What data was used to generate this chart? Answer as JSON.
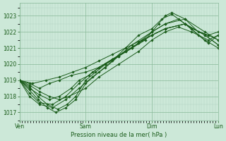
{
  "background_color": "#cce8d8",
  "plot_bg_color": "#cce8d8",
  "grid_color_minor": "#aad0c0",
  "grid_color_major": "#88b898",
  "line_color": "#1a5c1a",
  "marker_color": "#1a5c1a",
  "title": "Pression niveau de la mer( hPa )",
  "xlabel_ticks": [
    "Ven",
    "Sam",
    "Dim",
    "Lun"
  ],
  "ylim": [
    1016.5,
    1023.8
  ],
  "yticks": [
    1017,
    1018,
    1019,
    1020,
    1021,
    1022,
    1023
  ],
  "figsize": [
    3.2,
    2.0
  ],
  "dpi": 100,
  "members": [
    {
      "x": [
        0,
        0.15,
        0.28,
        0.42,
        0.58,
        0.72,
        0.85,
        1.0,
        1.15,
        1.3,
        1.5,
        1.7,
        1.85,
        2.0,
        2.1,
        2.2,
        2.3,
        2.5,
        2.7,
        2.85,
        3.0
      ],
      "y": [
        1019.0,
        1018.6,
        1018.0,
        1017.5,
        1017.2,
        1017.5,
        1018.0,
        1019.0,
        1019.5,
        1020.0,
        1020.5,
        1021.0,
        1021.5,
        1022.0,
        1022.5,
        1023.0,
        1023.2,
        1022.8,
        1022.0,
        1021.8,
        1021.5
      ]
    },
    {
      "x": [
        0,
        0.15,
        0.28,
        0.42,
        0.55,
        0.7,
        0.85,
        1.0,
        1.2,
        1.4,
        1.6,
        1.8,
        2.0,
        2.15,
        2.3,
        2.5,
        2.7,
        2.85,
        3.0
      ],
      "y": [
        1019.0,
        1018.4,
        1017.8,
        1017.3,
        1017.0,
        1017.3,
        1017.8,
        1018.8,
        1019.5,
        1020.2,
        1021.0,
        1021.8,
        1022.2,
        1022.8,
        1023.1,
        1022.5,
        1021.8,
        1021.3,
        1021.8
      ]
    },
    {
      "x": [
        0,
        0.15,
        0.3,
        0.45,
        0.6,
        0.78,
        0.9,
        1.05,
        1.2,
        1.4,
        1.6,
        1.8,
        2.0,
        2.2,
        2.5,
        2.8,
        3.0
      ],
      "y": [
        1019.0,
        1018.5,
        1018.1,
        1017.8,
        1018.0,
        1018.5,
        1019.0,
        1019.3,
        1019.8,
        1020.3,
        1020.8,
        1021.3,
        1021.8,
        1022.2,
        1022.5,
        1021.8,
        1021.2
      ]
    },
    {
      "x": [
        0,
        0.15,
        0.3,
        0.45,
        0.6,
        0.78,
        1.0,
        1.2,
        1.4,
        1.6,
        1.8,
        2.0,
        2.2,
        2.5,
        2.8,
        3.0
      ],
      "y": [
        1019.0,
        1018.8,
        1018.5,
        1018.8,
        1019.0,
        1019.3,
        1019.5,
        1019.8,
        1020.3,
        1020.8,
        1021.3,
        1021.8,
        1022.2,
        1022.5,
        1021.5,
        1021.0
      ]
    },
    {
      "x": [
        0,
        0.15,
        0.3,
        0.45,
        0.6,
        0.75,
        1.0,
        1.2,
        1.5,
        1.8,
        2.0,
        2.2,
        2.4,
        2.6,
        2.85,
        3.0
      ],
      "y": [
        1019.0,
        1018.7,
        1018.3,
        1018.0,
        1017.8,
        1018.0,
        1018.5,
        1019.2,
        1020.0,
        1020.8,
        1021.5,
        1022.0,
        1022.3,
        1022.0,
        1021.5,
        1021.8
      ]
    },
    {
      "x": [
        0,
        0.15,
        0.3,
        0.5,
        0.7,
        0.9,
        1.1,
        1.3,
        1.5,
        1.7,
        1.9,
        2.0,
        2.2,
        2.4,
        2.6,
        2.85,
        3.0
      ],
      "y": [
        1019.0,
        1018.2,
        1017.6,
        1017.5,
        1018.0,
        1018.8,
        1019.5,
        1020.0,
        1020.5,
        1021.0,
        1021.5,
        1022.0,
        1022.5,
        1022.8,
        1022.2,
        1021.8,
        1022.0
      ]
    },
    {
      "x": [
        0,
        0.15,
        0.3,
        0.5,
        0.7,
        0.9,
        1.1,
        1.3,
        1.5,
        1.7,
        2.0,
        2.2,
        2.5,
        2.8,
        3.0
      ],
      "y": [
        1019.0,
        1018.0,
        1017.5,
        1017.3,
        1017.8,
        1018.5,
        1019.2,
        1019.8,
        1020.5,
        1021.2,
        1022.0,
        1022.5,
        1022.8,
        1022.0,
        1021.5
      ]
    },
    {
      "x": [
        0,
        0.2,
        0.4,
        0.6,
        0.8,
        1.0,
        1.2,
        1.4,
        1.6,
        1.8,
        2.0,
        2.2,
        2.5,
        2.8,
        3.0
      ],
      "y": [
        1019.0,
        1018.8,
        1019.0,
        1019.2,
        1019.5,
        1019.8,
        1020.2,
        1020.6,
        1021.0,
        1021.4,
        1021.8,
        1022.2,
        1022.5,
        1021.8,
        1021.2
      ]
    }
  ]
}
